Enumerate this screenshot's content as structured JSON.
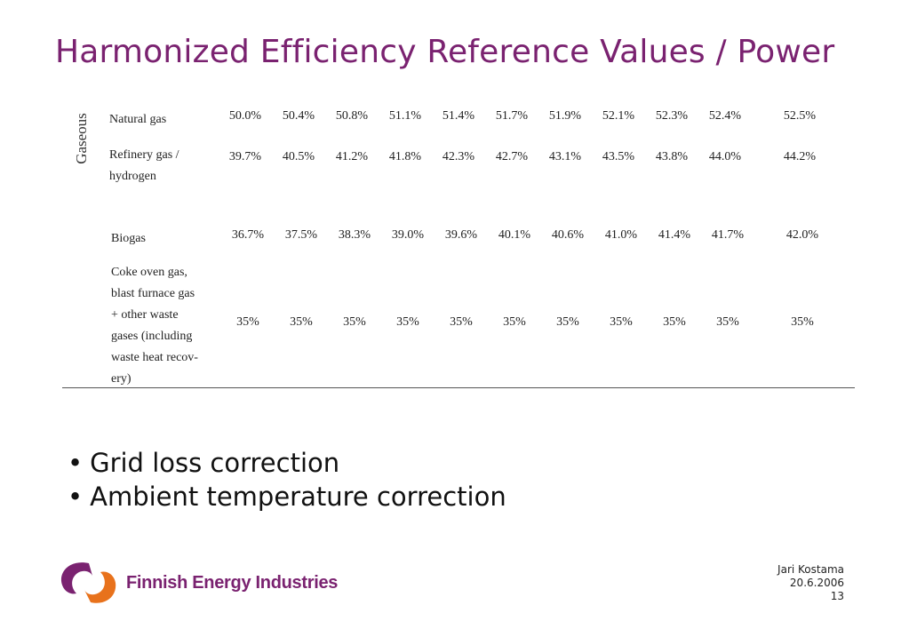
{
  "slide": {
    "title": "Harmonized Efficiency Reference Values / Power"
  },
  "table": {
    "group_label": "Gaseous",
    "rows": [
      {
        "label": "Natural gas",
        "values": [
          "50.0%",
          "50.4%",
          "50.8%",
          "51.1%",
          "51.4%",
          "51.7%",
          "51.9%",
          "52.1%",
          "52.3%",
          "52.4%",
          "52.5%"
        ]
      },
      {
        "label": "Refinery gas /\nhydrogen",
        "values": [
          "39.7%",
          "40.5%",
          "41.2%",
          "41.8%",
          "42.3%",
          "42.7%",
          "43.1%",
          "43.5%",
          "43.8%",
          "44.0%",
          "44.2%"
        ]
      },
      {
        "label": "Biogas",
        "values": [
          "36.7%",
          "37.5%",
          "38.3%",
          "39.0%",
          "39.6%",
          "40.1%",
          "40.6%",
          "41.0%",
          "41.4%",
          "41.7%",
          "42.0%"
        ]
      },
      {
        "label": "Coke oven gas,\nblast furnace gas\n+ other waste\ngases (including\nwaste heat recov-\nery)",
        "values": [
          "35%",
          "35%",
          "35%",
          "35%",
          "35%",
          "35%",
          "35%",
          "35%",
          "35%",
          "35%",
          "35%"
        ]
      }
    ]
  },
  "bullets": [
    "Grid loss correction",
    "Ambient temperature correction"
  ],
  "bullet_symbol": "•",
  "logo": {
    "text": "Finnish Energy Industries",
    "colors": {
      "purple": "#7a2270",
      "orange": "#e8721c"
    }
  },
  "footer": {
    "author": "Jari Kostama",
    "date": "20.6.2006",
    "page": "13"
  }
}
